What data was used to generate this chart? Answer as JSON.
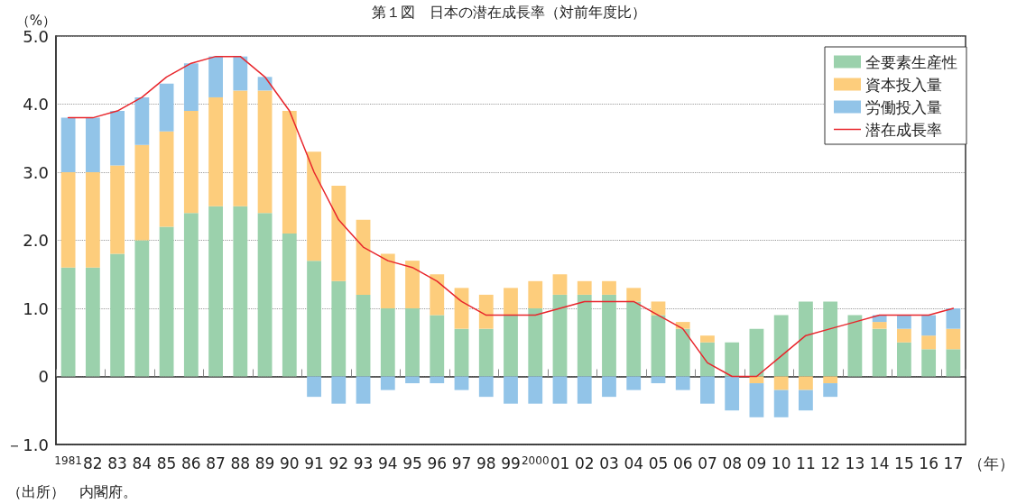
{
  "chart_data": {
    "type": "bar",
    "stacked": true,
    "title": "第１図　日本の潜在成長率（対前年度比）",
    "ylabel": "（%）",
    "xlabel": "（年）",
    "annotations": [
      "（出所）　内閣府。"
    ],
    "categories": [
      "1981",
      "82",
      "83",
      "84",
      "85",
      "86",
      "87",
      "88",
      "89",
      "90",
      "91",
      "92",
      "93",
      "94",
      "95",
      "96",
      "97",
      "98",
      "99",
      "2000",
      "01",
      "02",
      "03",
      "04",
      "05",
      "06",
      "07",
      "08",
      "09",
      "10",
      "11",
      "12",
      "13",
      "14",
      "15",
      "16",
      "17"
    ],
    "series": [
      {
        "name": "全要素生産性",
        "color": "#9bd1ac",
        "values": [
          1.6,
          1.6,
          1.8,
          2.0,
          2.2,
          2.4,
          2.5,
          2.5,
          2.4,
          2.1,
          1.7,
          1.4,
          1.2,
          1.0,
          1.0,
          0.9,
          0.7,
          0.7,
          0.9,
          1.0,
          1.2,
          1.2,
          1.2,
          1.1,
          0.9,
          0.7,
          0.5,
          0.5,
          0.7,
          0.9,
          1.1,
          1.1,
          0.9,
          0.7,
          0.5,
          0.4,
          0.4
        ]
      },
      {
        "name": "資本投入量",
        "color": "#fdcd7c",
        "values": [
          1.4,
          1.4,
          1.3,
          1.4,
          1.4,
          1.5,
          1.6,
          1.7,
          1.8,
          1.8,
          1.6,
          1.4,
          1.1,
          0.8,
          0.7,
          0.6,
          0.6,
          0.5,
          0.4,
          0.4,
          0.3,
          0.2,
          0.2,
          0.2,
          0.2,
          0.1,
          0.1,
          0,
          -0.1,
          -0.2,
          -0.2,
          -0.1,
          0,
          0.1,
          0.2,
          0.2,
          0.3
        ]
      },
      {
        "name": "労働投入量",
        "color": "#92c4e8",
        "values": [
          0.8,
          0.8,
          0.8,
          0.7,
          0.7,
          0.7,
          0.6,
          0.5,
          0.2,
          0,
          -0.3,
          -0.4,
          -0.4,
          -0.2,
          -0.1,
          -0.1,
          -0.2,
          -0.3,
          -0.4,
          -0.4,
          -0.4,
          -0.4,
          -0.3,
          -0.2,
          -0.1,
          -0.2,
          -0.4,
          -0.5,
          -0.5,
          -0.4,
          -0.3,
          -0.2,
          0,
          0.1,
          0.2,
          0.3,
          0.3
        ]
      },
      {
        "name": "潜在成長率",
        "type": "line",
        "color": "#e8262c",
        "values": [
          3.8,
          3.8,
          3.9,
          4.1,
          4.4,
          4.6,
          4.7,
          4.7,
          4.4,
          3.9,
          3.0,
          2.3,
          1.9,
          1.7,
          1.6,
          1.4,
          1.1,
          0.9,
          0.9,
          0.9,
          1.0,
          1.1,
          1.1,
          1.1,
          0.9,
          0.7,
          0.2,
          0,
          0,
          0.3,
          0.6,
          0.7,
          0.8,
          0.9,
          0.9,
          0.9,
          1.0
        ]
      }
    ],
    "ylim": [
      -1,
      5
    ],
    "yticks": [
      {
        "value": -1,
        "label": "－1.0"
      },
      0,
      {
        "value": 1,
        "label": "1.0"
      },
      {
        "value": 2,
        "label": "2.0"
      },
      {
        "value": 3,
        "label": "3.0"
      },
      {
        "value": 4,
        "label": "4.0"
      },
      {
        "value": 5,
        "label": "5.0"
      }
    ],
    "grid": "y",
    "legend": "top right",
    "marker": "none",
    "line_style": "solid"
  }
}
